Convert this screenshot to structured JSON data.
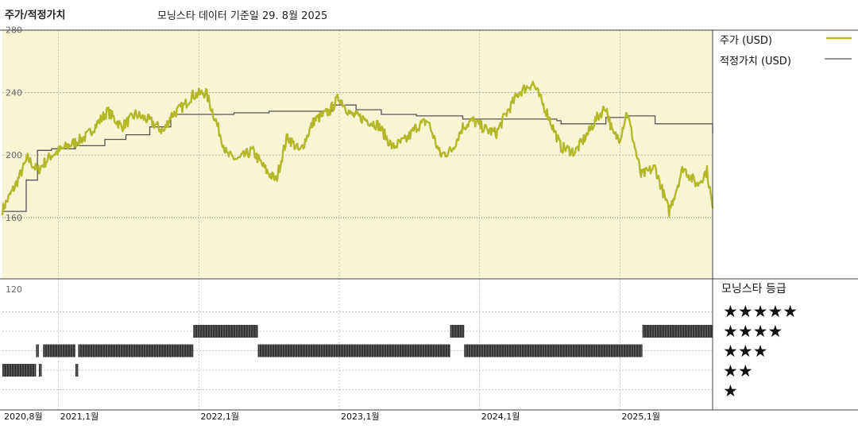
{
  "header": {
    "title": "주가/적정가치",
    "date_text": "모닝스타 데이터 기준일 29. 8월 2025"
  },
  "legend": {
    "price_label": "주가 (USD)",
    "fair_label": "적정가치 (USD)",
    "price_color": "#b3b829",
    "fair_color": "#555555"
  },
  "rating_panel": {
    "title": "모닝스타 등급",
    "rows": [
      "★★★★★",
      "★★★★",
      "★★★",
      "★★",
      "★"
    ]
  },
  "chart_data": {
    "type": "line",
    "y_ticks": [
      "280",
      "240",
      "200",
      "160",
      "120"
    ],
    "ylim": [
      120,
      280
    ],
    "x_ticks": [
      "2020,8월",
      "2021,1월",
      "2022,1월",
      "2023,1월",
      "2024,1월",
      "2025,1월"
    ],
    "x_range": [
      "2020-08",
      "2025-08"
    ],
    "reference_line": 160,
    "background_color": "#f8f5d5",
    "series": [
      {
        "name": "주가 (USD)",
        "color": "#b3b829",
        "x": [
          2020.6,
          2020.7,
          2020.78,
          2020.85,
          2020.95,
          2021.05,
          2021.2,
          2021.35,
          2021.45,
          2021.55,
          2021.65,
          2021.75,
          2021.8,
          2021.9,
          2021.95,
          2022.05,
          2022.12,
          2022.2,
          2022.28,
          2022.38,
          2022.48,
          2022.55,
          2022.63,
          2022.72,
          2022.82,
          2022.93,
          2023.0,
          2023.08,
          2023.18,
          2023.28,
          2023.38,
          2023.48,
          2023.55,
          2023.63,
          2023.72,
          2023.8,
          2023.88,
          2023.95,
          2024.05,
          2024.12,
          2024.18,
          2024.28,
          2024.38,
          2024.48,
          2024.58,
          2024.68,
          2024.78,
          2024.83,
          2024.9,
          2024.95,
          2025.0,
          2025.05,
          2025.15,
          2025.25,
          2025.35,
          2025.45,
          2025.55,
          2025.62,
          2025.66
        ],
        "y": [
          165,
          182,
          198,
          190,
          200,
          205,
          212,
          228,
          218,
          226,
          222,
          215,
          225,
          232,
          238,
          240,
          222,
          200,
          197,
          203,
          190,
          184,
          212,
          202,
          222,
          228,
          237,
          226,
          223,
          219,
          205,
          210,
          218,
          222,
          200,
          203,
          218,
          222,
          216,
          214,
          225,
          240,
          246,
          227,
          205,
          202,
          215,
          223,
          231,
          213,
          211,
          228,
          187,
          192,
          164,
          192,
          181,
          190,
          166
        ],
        "notes": "approximate weekly closing trend read from chart"
      },
      {
        "name": "적정가치 (USD)",
        "color": "#555555",
        "step": true,
        "x": [
          2020.6,
          2020.77,
          2020.85,
          2020.95,
          2021.12,
          2021.33,
          2021.48,
          2021.65,
          2021.8,
          2022.05,
          2022.25,
          2022.5,
          2022.88,
          2022.95,
          2023.12,
          2023.3,
          2023.55,
          2023.88,
          2024.15,
          2024.55,
          2024.58,
          2024.85,
          2024.9,
          2025.05,
          2025.25,
          2025.55,
          2025.66
        ],
        "y": [
          164,
          184,
          203,
          204,
          206,
          210,
          213,
          218,
          226,
          226,
          227,
          228,
          228,
          232,
          229,
          226,
          225,
          223,
          223,
          222,
          220,
          220,
          224,
          225,
          220,
          220,
          214
        ]
      }
    ],
    "rating_bars": [
      {
        "rating": 2,
        "from": 2020.6,
        "to": 2020.84
      },
      {
        "rating": 2,
        "from": 2020.86,
        "to": 2020.88
      },
      {
        "rating": 3,
        "from": 2020.84,
        "to": 2020.86
      },
      {
        "rating": 3,
        "from": 2020.89,
        "to": 2021.12
      },
      {
        "rating": 2,
        "from": 2021.12,
        "to": 2021.14
      },
      {
        "rating": 3,
        "from": 2021.14,
        "to": 2021.96
      },
      {
        "rating": 4,
        "from": 2021.96,
        "to": 2022.42
      },
      {
        "rating": 3,
        "from": 2022.42,
        "to": 2023.79
      },
      {
        "rating": 4,
        "from": 2023.79,
        "to": 2023.89
      },
      {
        "rating": 3,
        "from": 2023.89,
        "to": 2025.16
      },
      {
        "rating": 4,
        "from": 2025.16,
        "to": 2025.66
      }
    ]
  }
}
